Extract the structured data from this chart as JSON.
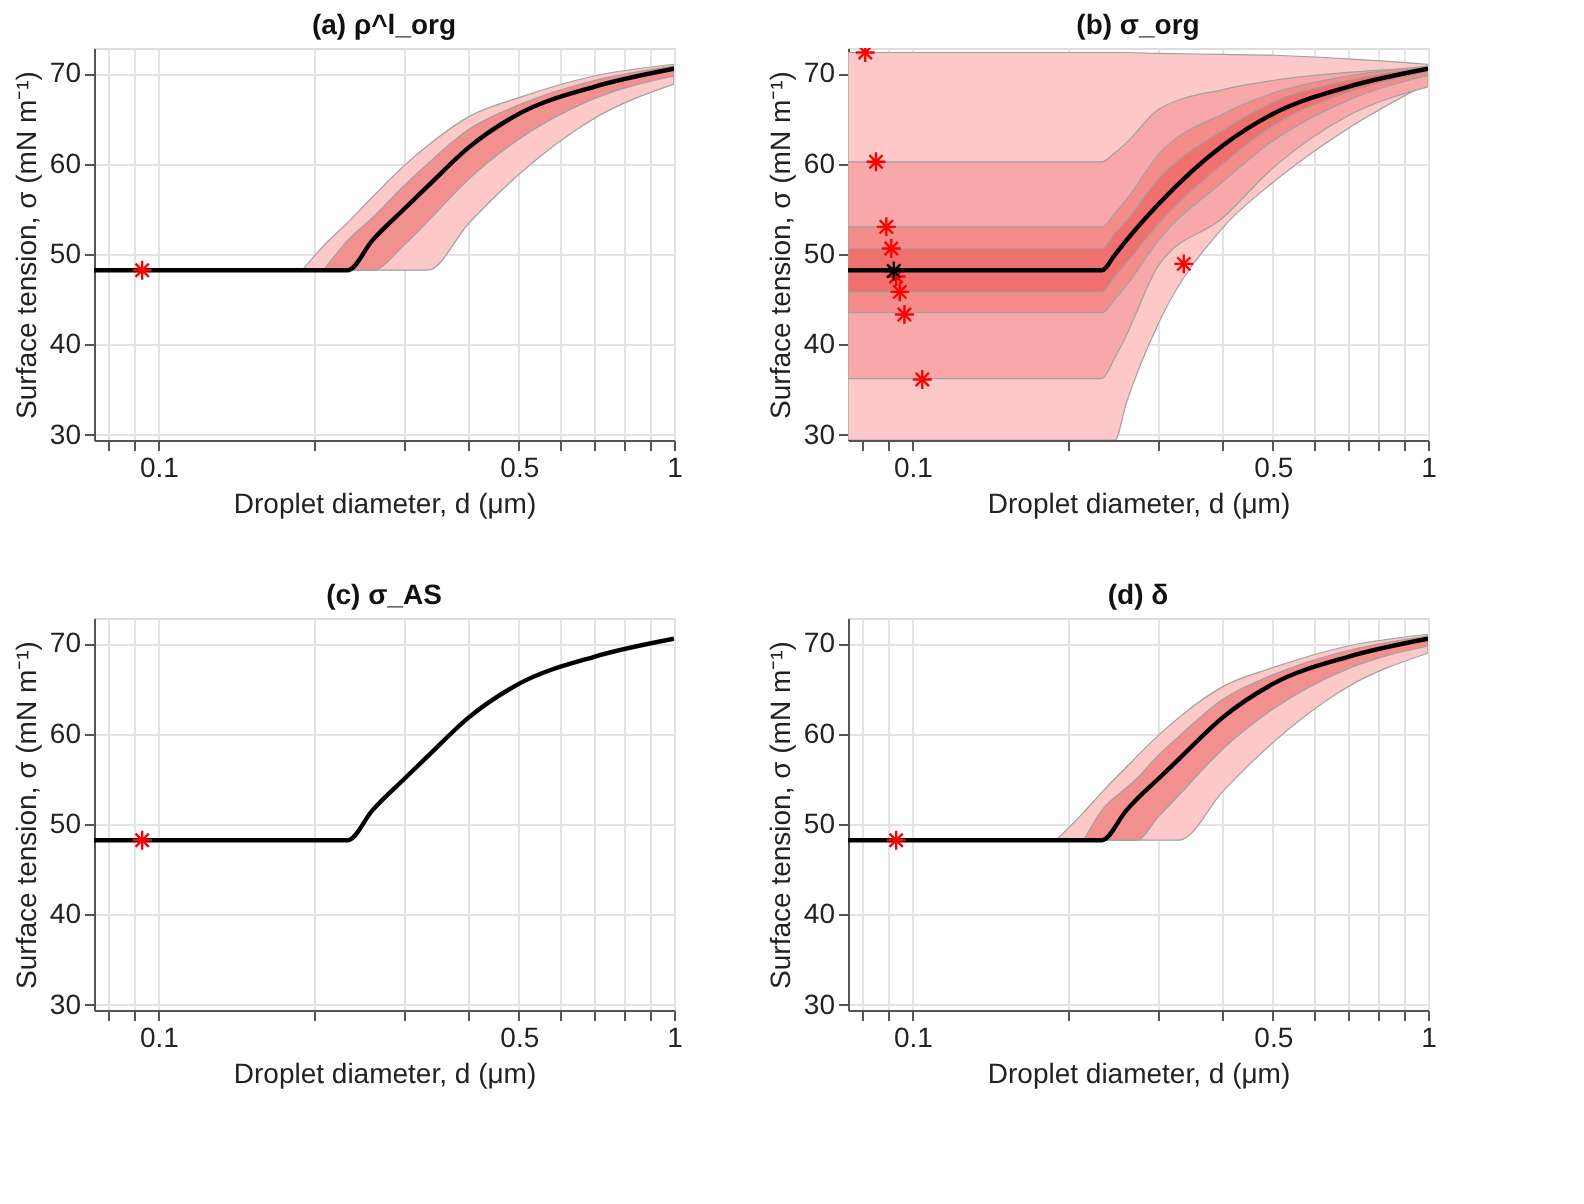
{
  "chart_data": [
    {
      "type": "line",
      "title": "(a) ρ^l_org",
      "xlabel": "Droplet diameter, d (μm)",
      "ylabel": "Surface tension, σ (mN m⁻¹)",
      "log": "x",
      "grid": true,
      "xlim": [
        0.075,
        1
      ],
      "ylim": [
        29.4,
        72.8
      ],
      "xticks": [
        {
          "value": 0.08,
          "label": null
        },
        {
          "value": 0.09,
          "label": null
        },
        0.1,
        {
          "value": 0.2,
          "label": null
        },
        {
          "value": 0.3,
          "label": null
        },
        {
          "value": 0.4,
          "label": null
        },
        0.5,
        {
          "value": 0.6,
          "label": null
        },
        {
          "value": 0.7,
          "label": null
        },
        {
          "value": 0.8,
          "label": null
        },
        {
          "value": 0.9,
          "label": null
        },
        1
      ],
      "yticks": [
        30,
        40,
        50,
        60,
        70
      ],
      "series": [
        {
          "color": "#fcc8c8",
          "x": [
            0.19,
            0.209,
            0.233,
            0.26,
            0.3,
            0.333,
            0.4,
            0.5,
            0.7,
            1
          ],
          "values": [
            null,
            null,
            null,
            null,
            null,
            null,
            null,
            null,
            null,
            null
          ],
          "lower": [
            48.2,
            48.2,
            48.2,
            48.2,
            48.2,
            48.2,
            53.4,
            58.8,
            65.0,
            68.8
          ],
          "upper": [
            48.2,
            50.9,
            53.5,
            56.3,
            59.8,
            62.0,
            65.2,
            67.3,
            69.7,
            71.0
          ]
        },
        {
          "color": "#f29090",
          "x": [
            0.209,
            0.233,
            0.26,
            0.3,
            0.333,
            0.4,
            0.5,
            0.7,
            1
          ],
          "values": [
            null,
            null,
            null,
            null,
            null,
            null,
            null,
            null,
            null
          ],
          "lower": [
            48.2,
            48.2,
            48.2,
            51.0,
            53.6,
            58.3,
            62.7,
            67.2,
            69.7
          ],
          "upper": [
            48.2,
            51.5,
            54.0,
            57.6,
            60.0,
            63.8,
            66.5,
            69.2,
            70.8
          ]
        },
        {
          "color": "#000000",
          "x": [
            0.075,
            0.19,
            0.209,
            0.233,
            0.26,
            0.3,
            0.333,
            0.4,
            0.5,
            0.7,
            1
          ],
          "values": [
            48.2,
            48.2,
            48.2,
            48.2,
            51.5,
            55.0,
            57.5,
            61.8,
            65.5,
            68.5,
            70.5
          ]
        },
        {
          "type": "scatter",
          "marker": "cross",
          "color": "#ff0000",
          "x": [
            0.093
          ],
          "values": [
            48.2
          ]
        }
      ]
    },
    {
      "type": "line",
      "title": "(b) σ_org",
      "xlabel": "Droplet diameter, d (μm)",
      "ylabel": "Surface tension, σ (mN m⁻¹)",
      "log": "x",
      "grid": true,
      "xlim": [
        0.075,
        1
      ],
      "ylim": [
        29.4,
        72.8
      ],
      "xticks": [
        {
          "value": 0.08,
          "label": null
        },
        {
          "value": 0.09,
          "label": null
        },
        0.1,
        {
          "value": 0.2,
          "label": null
        },
        {
          "value": 0.3,
          "label": null
        },
        {
          "value": 0.4,
          "label": null
        },
        0.5,
        {
          "value": 0.6,
          "label": null
        },
        {
          "value": 0.7,
          "label": null
        },
        {
          "value": 0.8,
          "label": null
        },
        {
          "value": 0.9,
          "label": null
        },
        1
      ],
      "yticks": [
        30,
        40,
        50,
        60,
        70
      ],
      "series": [
        {
          "color": "#fcc8c8",
          "x": [
            0.075,
            0.233,
            0.247,
            0.26,
            0.3,
            0.4,
            0.5,
            0.7,
            1
          ],
          "values": [
            null,
            null,
            null,
            null,
            null,
            null,
            null,
            null,
            null
          ],
          "lower": [
            29.4,
            29.4,
            29.4,
            33.5,
            42.3,
            52.9,
            57.9,
            63.9,
            68.9
          ],
          "upper": [
            72.3,
            72.3,
            72.3,
            72.3,
            72.2,
            72.1,
            72.0,
            71.6,
            71.0
          ]
        },
        {
          "color": "#f8a8a8",
          "x": [
            0.075,
            0.233,
            0.247,
            0.26,
            0.3,
            0.4,
            0.5,
            0.7,
            1
          ],
          "values": [
            null,
            null,
            null,
            null,
            null,
            null,
            null,
            null,
            null
          ],
          "lower": [
            36.2,
            36.2,
            38.5,
            41.0,
            48.7,
            54.0,
            59.5,
            65.3,
            68.5
          ],
          "upper": [
            60.2,
            60.2,
            61.2,
            62.3,
            66.0,
            68.2,
            69.2,
            70.1,
            70.6
          ]
        },
        {
          "color": "#f58c8c",
          "x": [
            0.075,
            0.233,
            0.247,
            0.26,
            0.3,
            0.4,
            0.5,
            0.7,
            1
          ],
          "values": [
            null,
            null,
            null,
            null,
            null,
            null,
            null,
            null,
            null
          ],
          "lower": [
            43.5,
            43.5,
            45.0,
            46.5,
            51.5,
            58.0,
            62.5,
            67.0,
            69.8
          ],
          "upper": [
            53.0,
            53.0,
            54.5,
            56.0,
            61.0,
            65.5,
            67.8,
            69.7,
            70.8
          ]
        },
        {
          "color": "#f07070",
          "x": [
            0.075,
            0.233,
            0.247,
            0.26,
            0.3,
            0.4,
            0.5,
            0.7,
            1
          ],
          "values": [
            null,
            null,
            null,
            null,
            null,
            null,
            null,
            null,
            null
          ],
          "lower": [
            45.8,
            45.8,
            47.5,
            49.0,
            53.3,
            60.0,
            64.2,
            67.9,
            70.2
          ],
          "upper": [
            50.6,
            50.6,
            52.3,
            53.7,
            58.3,
            63.7,
            66.8,
            69.2,
            70.7
          ]
        },
        {
          "color": "#000000",
          "x": [
            0.075,
            0.233,
            0.247,
            0.26,
            0.3,
            0.4,
            0.5,
            0.7,
            1
          ],
          "values": [
            48.2,
            48.2,
            49.9,
            51.5,
            55.5,
            62.0,
            65.5,
            68.5,
            70.5
          ]
        },
        {
          "type": "scatter",
          "marker": "cross",
          "color": "#ff0000",
          "x": [
            0.081,
            0.085,
            0.089,
            0.091,
            0.093,
            0.0945,
            0.0965,
            0.1045,
            0.336
          ],
          "values": [
            72.3,
            60.2,
            53.0,
            50.6,
            47.5,
            45.8,
            43.3,
            36.1,
            48.9
          ]
        },
        {
          "type": "scatter",
          "marker": "cross",
          "color": "#000000",
          "x": [
            0.092
          ],
          "values": [
            48.1
          ]
        }
      ]
    },
    {
      "type": "line",
      "title": "(c) σ_AS",
      "xlabel": "Droplet diameter, d (μm)",
      "ylabel": "Surface tension, σ (mN m⁻¹)",
      "log": "x",
      "grid": true,
      "xlim": [
        0.075,
        1
      ],
      "ylim": [
        29.4,
        72.8
      ],
      "xticks": [
        {
          "value": 0.08,
          "label": null
        },
        {
          "value": 0.09,
          "label": null
        },
        0.1,
        {
          "value": 0.2,
          "label": null
        },
        {
          "value": 0.3,
          "label": null
        },
        {
          "value": 0.4,
          "label": null
        },
        0.5,
        {
          "value": 0.6,
          "label": null
        },
        {
          "value": 0.7,
          "label": null
        },
        {
          "value": 0.8,
          "label": null
        },
        {
          "value": 0.9,
          "label": null
        },
        1
      ],
      "yticks": [
        30,
        40,
        50,
        60,
        70
      ],
      "series": [
        {
          "color": "#000000",
          "x": [
            0.075,
            0.233,
            0.26,
            0.3,
            0.333,
            0.4,
            0.5,
            0.7,
            1
          ],
          "values": [
            48.2,
            48.2,
            51.5,
            55.0,
            57.5,
            61.8,
            65.5,
            68.5,
            70.5
          ]
        },
        {
          "type": "scatter",
          "marker": "cross",
          "color": "#ff0000",
          "x": [
            0.093
          ],
          "values": [
            48.2
          ]
        }
      ]
    },
    {
      "type": "line",
      "title": "(d) δ",
      "xlabel": "Droplet diameter, d (μm)",
      "ylabel": "Surface tension, σ (mN m⁻¹)",
      "log": "x",
      "grid": true,
      "xlim": [
        0.075,
        1
      ],
      "ylim": [
        29.4,
        72.8
      ],
      "xticks": [
        {
          "value": 0.08,
          "label": null
        },
        {
          "value": 0.09,
          "label": null
        },
        0.1,
        {
          "value": 0.2,
          "label": null
        },
        {
          "value": 0.3,
          "label": null
        },
        {
          "value": 0.4,
          "label": null
        },
        0.5,
        {
          "value": 0.6,
          "label": null
        },
        {
          "value": 0.7,
          "label": null
        },
        {
          "value": 0.8,
          "label": null
        },
        {
          "value": 0.9,
          "label": null
        },
        1
      ],
      "yticks": [
        30,
        40,
        50,
        60,
        70
      ],
      "series": [
        {
          "color": "#fcc8c8",
          "x": [
            0.19,
            0.215,
            0.233,
            0.26,
            0.3,
            0.329,
            0.4,
            0.5,
            0.7,
            1
          ],
          "values": [
            null,
            null,
            null,
            null,
            null,
            null,
            null,
            null,
            null,
            null
          ],
          "lower": [
            48.2,
            48.2,
            48.2,
            48.2,
            48.2,
            48.2,
            53.6,
            59.0,
            65.2,
            68.9
          ],
          "upper": [
            48.2,
            51.3,
            53.5,
            56.3,
            59.8,
            61.8,
            65.2,
            67.3,
            69.7,
            71.0
          ]
        },
        {
          "color": "#f29090",
          "x": [
            0.215,
            0.233,
            0.26,
            0.272,
            0.3,
            0.329,
            0.4,
            0.5,
            0.7,
            1
          ],
          "values": [
            null,
            null,
            null,
            null,
            null,
            null,
            null,
            null,
            null,
            null
          ],
          "lower": [
            48.2,
            48.2,
            48.2,
            48.2,
            50.8,
            53.2,
            58.3,
            62.7,
            67.2,
            69.7
          ],
          "upper": [
            48.2,
            51.5,
            54.0,
            55.0,
            57.6,
            59.7,
            63.8,
            66.5,
            69.2,
            70.8
          ]
        },
        {
          "color": "#000000",
          "x": [
            0.075,
            0.215,
            0.233,
            0.26,
            0.272,
            0.3,
            0.329,
            0.4,
            0.5,
            0.7,
            1
          ],
          "values": [
            48.2,
            48.2,
            48.2,
            51.5,
            52.7,
            55.0,
            57.2,
            61.8,
            65.5,
            68.5,
            70.5
          ]
        },
        {
          "type": "scatter",
          "marker": "cross",
          "color": "#ff0000",
          "x": [
            0.093
          ],
          "values": [
            48.2
          ]
        }
      ]
    }
  ]
}
